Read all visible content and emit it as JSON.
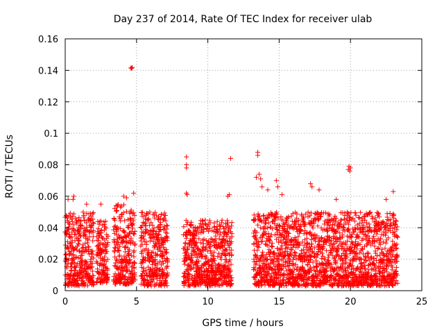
{
  "chart_data": {
    "type": "scatter",
    "title": "Day 237 of 2014, Rate Of TEC Index for receiver ulab",
    "xlabel": "GPS time / hours",
    "ylabel": "ROTI / TECUs",
    "xlim": [
      0,
      25
    ],
    "ylim": [
      0,
      0.16
    ],
    "xticks": [
      0,
      5,
      10,
      15,
      20,
      25
    ],
    "xtick_labels": [
      "0",
      "5",
      "10",
      "15",
      "20",
      "25"
    ],
    "yticks": [
      0,
      0.02,
      0.04,
      0.06,
      0.08,
      0.1,
      0.12,
      0.14,
      0.16
    ],
    "ytick_labels": [
      "0",
      "0.02",
      "0.04",
      "0.06",
      "0.08",
      "0.1",
      "0.12",
      "0.14",
      "0.16"
    ],
    "grid": true,
    "marker": "+",
    "color": "#ff0000",
    "series": [
      {
        "name": "ROTI",
        "segments": [
          {
            "t_start": 0.0,
            "t_end": 2.0,
            "y_min": 0.003,
            "y_max": 0.05
          },
          {
            "t_start": 2.2,
            "t_end": 3.0,
            "y_min": 0.005,
            "y_max": 0.045
          },
          {
            "t_start": 3.4,
            "t_end": 4.9,
            "y_min": 0.004,
            "y_max": 0.055
          },
          {
            "t_start": 5.3,
            "t_end": 7.2,
            "y_min": 0.003,
            "y_max": 0.05
          },
          {
            "t_start": 8.3,
            "t_end": 11.7,
            "y_min": 0.003,
            "y_max": 0.045
          },
          {
            "t_start": 13.2,
            "t_end": 23.3,
            "y_min": 0.003,
            "y_max": 0.05
          }
        ],
        "highlights": [
          {
            "x": 4.6,
            "y": 0.1415
          },
          {
            "x": 4.65,
            "y": 0.1413
          },
          {
            "x": 4.7,
            "y": 0.1418
          },
          {
            "x": 8.5,
            "y": 0.085
          },
          {
            "x": 8.5,
            "y": 0.08
          },
          {
            "x": 8.5,
            "y": 0.078
          },
          {
            "x": 8.5,
            "y": 0.062
          },
          {
            "x": 8.55,
            "y": 0.061
          },
          {
            "x": 11.6,
            "y": 0.084
          },
          {
            "x": 11.5,
            "y": 0.061
          },
          {
            "x": 11.4,
            "y": 0.06
          },
          {
            "x": 13.5,
            "y": 0.088
          },
          {
            "x": 13.5,
            "y": 0.086
          },
          {
            "x": 13.6,
            "y": 0.074
          },
          {
            "x": 13.4,
            "y": 0.072
          },
          {
            "x": 13.7,
            "y": 0.071
          },
          {
            "x": 13.8,
            "y": 0.066
          },
          {
            "x": 14.2,
            "y": 0.064
          },
          {
            "x": 14.8,
            "y": 0.07
          },
          {
            "x": 14.9,
            "y": 0.066
          },
          {
            "x": 15.2,
            "y": 0.061
          },
          {
            "x": 17.2,
            "y": 0.068
          },
          {
            "x": 17.3,
            "y": 0.066
          },
          {
            "x": 17.8,
            "y": 0.064
          },
          {
            "x": 19.9,
            "y": 0.079
          },
          {
            "x": 19.85,
            "y": 0.077
          },
          {
            "x": 19.95,
            "y": 0.076
          },
          {
            "x": 20.0,
            "y": 0.078
          },
          {
            "x": 19.0,
            "y": 0.058
          },
          {
            "x": 22.5,
            "y": 0.058
          },
          {
            "x": 23.0,
            "y": 0.063
          },
          {
            "x": 0.2,
            "y": 0.058
          },
          {
            "x": 0.6,
            "y": 0.06
          },
          {
            "x": 0.55,
            "y": 0.058
          },
          {
            "x": 1.5,
            "y": 0.055
          },
          {
            "x": 2.5,
            "y": 0.055
          },
          {
            "x": 4.1,
            "y": 0.06
          },
          {
            "x": 4.8,
            "y": 0.062
          },
          {
            "x": 4.3,
            "y": 0.059
          }
        ]
      }
    ]
  }
}
